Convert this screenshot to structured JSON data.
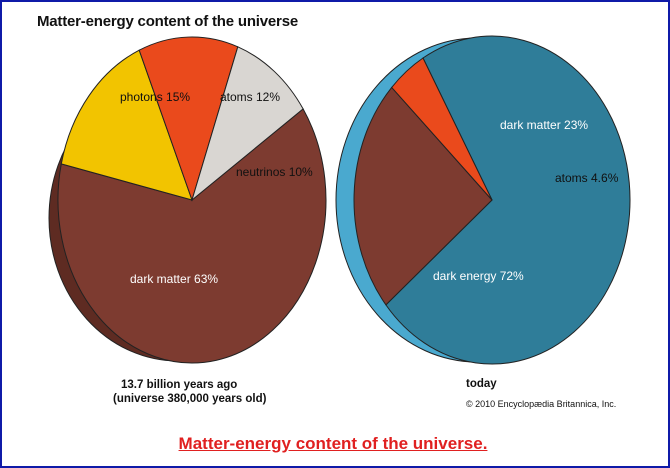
{
  "title": "Matter-energy content of the universe",
  "footer_caption": "Matter-energy content of the universe.",
  "copyright": "© 2010 Encyclopædia Britannica, Inc.",
  "chart_data": [
    {
      "type": "pie",
      "caption_line1": "13.7 billion years ago",
      "caption_line2": "(universe 380,000 years old)",
      "slices": [
        {
          "label": "dark matter 63%",
          "value": 63,
          "color": "#7d3b30"
        },
        {
          "label": "photons 15%",
          "value": 15,
          "color": "#f2c400"
        },
        {
          "label": "atoms 12%",
          "value": 12,
          "color": "#ea4a1c"
        },
        {
          "label": "neutrinos 10%",
          "value": 10,
          "color": "#d9d6d2"
        }
      ]
    },
    {
      "type": "pie",
      "caption_line1": "today",
      "slices": [
        {
          "label": "dark energy 72%",
          "value": 72,
          "color": "#2f7d99"
        },
        {
          "label": "dark matter 23%",
          "value": 23,
          "color": "#7d3b30"
        },
        {
          "label": "atoms 4.6%",
          "value": 4.6,
          "color": "#ea4a1c"
        }
      ]
    }
  ]
}
